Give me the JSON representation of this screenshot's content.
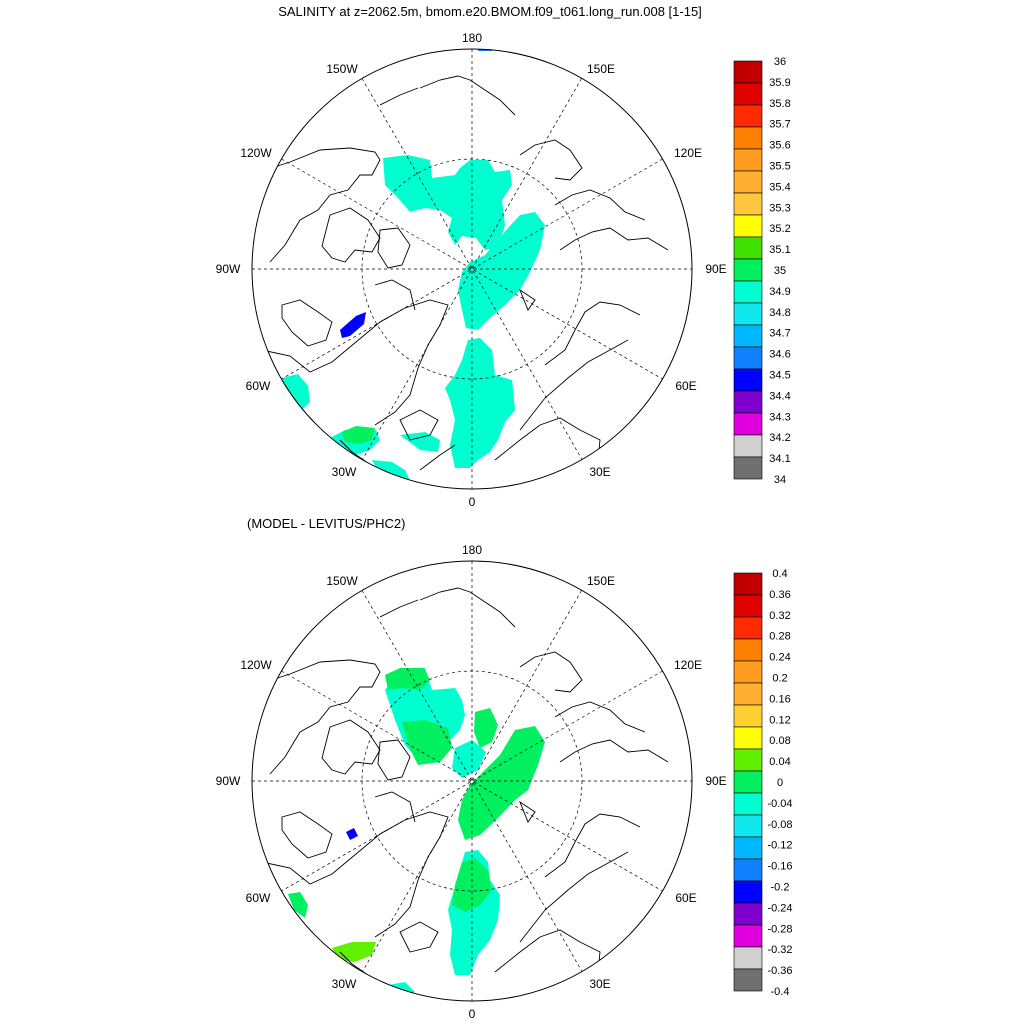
{
  "page": {
    "title": "SALINITY at z=2062.5m, bmom.e20.BMOM.f09_t061.long_run.008 [1-15]",
    "subtitle": "(MODEL - LEVITUS/PHC2)"
  },
  "maps": [
    {
      "id": "top",
      "lon_labels": [
        "180",
        "150E",
        "120E",
        "90E",
        "60E",
        "30E",
        "0",
        "30W",
        "60W",
        "90W",
        "120W",
        "150W"
      ],
      "colorbar": {
        "labels": [
          "36",
          "35.9",
          "35.8",
          "35.7",
          "35.6",
          "35.5",
          "35.4",
          "35.3",
          "35.2",
          "35.1",
          "35",
          "34.9",
          "34.8",
          "34.7",
          "34.6",
          "34.5",
          "34.4",
          "34.3",
          "34.2",
          "34.1",
          "34"
        ],
        "colors": [
          "#c00000",
          "#e00000",
          "#ff2a00",
          "#ff8000",
          "#ff9c20",
          "#ffb030",
          "#ffc640",
          "#ffff00",
          "#40e000",
          "#00f060",
          "#00ffd0",
          "#10e8f0",
          "#00b8ff",
          "#1080ff",
          "#0000ff",
          "#8000d0",
          "#e000e0",
          "#d0d0d0",
          "#707070"
        ]
      }
    },
    {
      "id": "bottom",
      "lon_labels": [
        "180",
        "150E",
        "120E",
        "90E",
        "60E",
        "30E",
        "0",
        "30W",
        "60W",
        "90W",
        "120W",
        "150W"
      ],
      "colorbar": {
        "labels": [
          "0.4",
          "0.36",
          "0.32",
          "0.28",
          "0.24",
          "0.2",
          "0.16",
          "0.12",
          "0.08",
          "0.04",
          "0",
          "-0.04",
          "-0.08",
          "-0.12",
          "-0.16",
          "-0.2",
          "-0.24",
          "-0.28",
          "-0.32",
          "-0.36",
          "-0.4"
        ],
        "colors": [
          "#c00000",
          "#e00000",
          "#ff2a00",
          "#ff8000",
          "#ff9c20",
          "#ffb030",
          "#ffd030",
          "#ffff00",
          "#60f000",
          "#00f060",
          "#00ffd0",
          "#10e8f0",
          "#00b8ff",
          "#1080ff",
          "#0000ff",
          "#8000d0",
          "#e000e0",
          "#d0d0d0",
          "#707070"
        ]
      }
    }
  ]
}
